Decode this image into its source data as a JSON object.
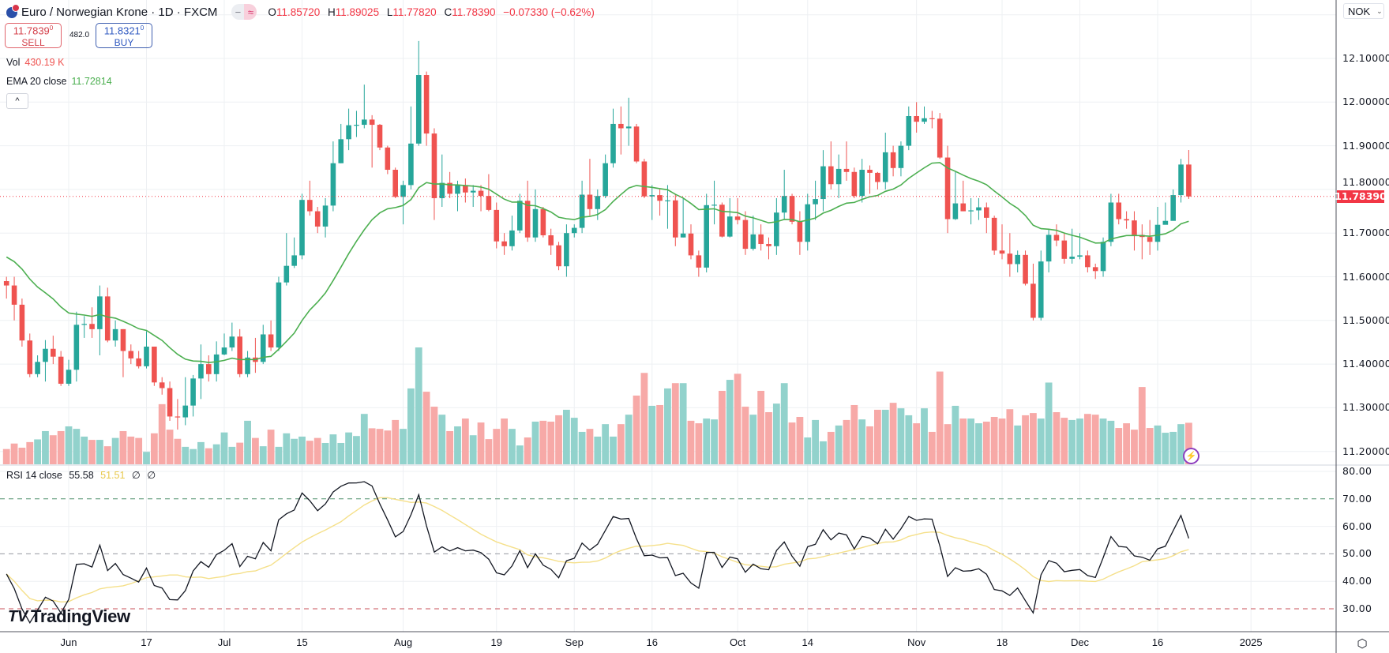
{
  "header": {
    "symbol_title": "Euro / Norwegian Krone · 1D · FXCM",
    "flag_icon": "eur-nok-flag-icon",
    "pill_left": "−",
    "pill_right": "≈",
    "ohlc": {
      "o_label": "O",
      "o": "11.85720",
      "h_label": "H",
      "h": "11.89025",
      "l_label": "L",
      "l": "11.77820",
      "c_label": "C",
      "c": "11.78390",
      "change": "−0.07330 (−0.62%)"
    }
  },
  "trade": {
    "sell_price": "11.7839",
    "sell_sup": "0",
    "sell_label": "SELL",
    "spread": "482.0",
    "buy_price": "11.8321",
    "buy_sup": "0",
    "buy_label": "BUY"
  },
  "legend": {
    "vol_label": "Vol",
    "vol_value": "430.19 K",
    "ema_label": "EMA 20 close",
    "ema_value": "11.72814",
    "collapse_icon": "^"
  },
  "currency": {
    "label": "NOK",
    "chevron": "⌄"
  },
  "rsi_header": {
    "label": "RSI 14 close",
    "rsi": "55.58",
    "ma": "51.51",
    "n1": "∅",
    "n2": "∅"
  },
  "price_axis": [
    "12.10000",
    "12.00000",
    "11.90000",
    "11.80000",
    "11.70000",
    "11.60000",
    "11.50000",
    "11.40000",
    "11.30000",
    "11.20000"
  ],
  "last_price": "11.78390",
  "rsi_axis": [
    "80.00",
    "70.00",
    "60.00",
    "50.00",
    "40.00",
    "30.00"
  ],
  "time_axis": [
    {
      "label": "Jun",
      "bar": 8
    },
    {
      "label": "17",
      "bar": 18
    },
    {
      "label": "Jul",
      "bar": 28
    },
    {
      "label": "15",
      "bar": 38
    },
    {
      "label": "Aug",
      "bar": 51
    },
    {
      "label": "19",
      "bar": 63
    },
    {
      "label": "Sep",
      "bar": 73
    },
    {
      "label": "16",
      "bar": 83
    },
    {
      "label": "Oct",
      "bar": 94
    },
    {
      "label": "14",
      "bar": 103
    },
    {
      "label": "Nov",
      "bar": 117
    },
    {
      "label": "18",
      "bar": 128
    },
    {
      "label": "Dec",
      "bar": 138
    },
    {
      "label": "16",
      "bar": 148
    },
    {
      "label": "2025",
      "bar": 160
    }
  ],
  "logo": "TradingView",
  "colors": {
    "up": "#26a69a",
    "down": "#ef5350",
    "vol_up": "#92d2cc",
    "vol_down": "#f7a9a7",
    "ema": "#4caf50",
    "rsi": "#131722",
    "rsi_ma": "#f5e08a"
  },
  "chart_data": {
    "type": "candlestick",
    "title": "Euro / Norwegian Krone · 1D · FXCM",
    "ylim": [
      11.2,
      12.1
    ],
    "rsi_ylim": [
      30,
      80
    ],
    "rsi_levels": [
      70,
      50,
      30
    ],
    "note": "open of each bar equals previous close",
    "first_open": 11.59,
    "close": [
      11.58,
      11.536,
      11.454,
      11.377,
      11.405,
      11.435,
      11.417,
      11.355,
      11.387,
      11.49,
      11.492,
      11.48,
      11.555,
      11.454,
      11.48,
      11.43,
      11.413,
      11.395,
      11.44,
      11.358,
      11.345,
      11.28,
      11.278,
      11.305,
      11.367,
      11.4,
      11.377,
      11.422,
      11.438,
      11.463,
      11.377,
      11.415,
      11.405,
      11.468,
      11.438,
      11.587,
      11.625,
      11.649,
      11.776,
      11.75,
      11.715,
      11.763,
      11.86,
      11.915,
      11.947,
      11.948,
      11.96,
      11.948,
      11.896,
      11.845,
      11.783,
      11.81,
      11.905,
      12.062,
      11.928,
      11.78,
      11.815,
      11.79,
      11.81,
      11.793,
      11.797,
      11.785,
      11.753,
      11.681,
      11.67,
      11.706,
      11.774,
      11.69,
      11.755,
      11.695,
      11.672,
      11.624,
      11.7,
      11.712,
      11.788,
      11.755,
      11.785,
      11.86,
      11.95,
      11.94,
      11.944,
      11.864,
      11.784,
      11.787,
      11.774,
      11.775,
      11.69,
      11.699,
      11.649,
      11.621,
      11.764,
      11.765,
      11.692,
      11.738,
      11.73,
      11.664,
      11.697,
      11.675,
      11.67,
      11.747,
      11.785,
      11.726,
      11.68,
      11.766,
      11.778,
      11.853,
      11.812,
      11.847,
      11.84,
      11.785,
      11.845,
      11.838,
      11.817,
      11.885,
      11.849,
      11.9,
      11.968,
      11.955,
      11.963,
      11.962,
      11.873,
      11.732,
      11.768,
      11.75,
      11.752,
      11.759,
      11.735,
      11.66,
      11.653,
      11.629,
      11.65,
      11.584,
      11.506,
      11.635,
      11.696,
      11.683,
      11.641,
      11.646,
      11.649,
      11.622,
      11.613,
      11.68,
      11.77,
      11.732,
      11.729,
      11.696,
      11.691,
      11.68,
      11.719,
      11.728,
      11.787,
      11.857,
      11.7839
    ],
    "high": [
      11.6,
      11.6,
      11.55,
      11.47,
      11.42,
      11.455,
      11.465,
      11.43,
      11.41,
      11.52,
      11.51,
      11.53,
      11.58,
      11.575,
      11.5,
      11.48,
      11.445,
      11.43,
      11.475,
      11.44,
      11.37,
      11.36,
      11.32,
      11.37,
      11.375,
      11.445,
      11.42,
      11.452,
      11.47,
      11.495,
      11.48,
      11.43,
      11.46,
      11.49,
      11.5,
      11.6,
      11.7,
      11.69,
      11.79,
      11.82,
      11.76,
      11.78,
      11.91,
      11.95,
      11.985,
      11.98,
      12.04,
      11.97,
      11.95,
      11.9,
      11.85,
      11.82,
      11.99,
      12.14,
      12.07,
      11.94,
      11.88,
      11.84,
      11.82,
      11.825,
      11.81,
      11.81,
      11.835,
      11.77,
      11.7,
      11.74,
      11.79,
      11.82,
      11.8,
      11.76,
      11.71,
      11.68,
      11.72,
      11.72,
      11.82,
      11.87,
      11.8,
      11.88,
      11.985,
      11.99,
      12.01,
      11.95,
      11.87,
      11.81,
      11.8,
      11.81,
      11.79,
      11.78,
      11.72,
      11.66,
      11.79,
      11.82,
      11.77,
      11.78,
      11.78,
      11.75,
      11.74,
      11.72,
      11.69,
      11.78,
      11.845,
      11.79,
      11.75,
      11.79,
      11.82,
      11.89,
      11.91,
      11.88,
      11.91,
      11.85,
      11.87,
      11.855,
      11.84,
      11.93,
      11.9,
      11.91,
      11.99,
      12.0,
      11.99,
      11.98,
      11.975,
      11.9,
      11.84,
      11.82,
      11.78,
      11.78,
      11.77,
      11.74,
      11.72,
      11.7,
      11.66,
      11.66,
      11.63,
      11.66,
      11.71,
      11.72,
      11.7,
      11.71,
      11.7,
      11.66,
      11.63,
      11.69,
      11.79,
      11.79,
      11.75,
      11.75,
      11.72,
      11.73,
      11.76,
      11.77,
      11.8,
      11.87,
      11.89025
    ],
    "low": [
      11.55,
      11.5,
      11.44,
      11.37,
      11.37,
      11.36,
      11.4,
      11.35,
      11.35,
      11.36,
      11.46,
      11.46,
      11.42,
      11.45,
      11.44,
      11.37,
      11.4,
      11.39,
      11.39,
      11.35,
      11.33,
      11.27,
      11.25,
      11.26,
      11.28,
      11.32,
      11.36,
      11.36,
      11.42,
      11.43,
      11.37,
      11.37,
      11.38,
      11.4,
      11.43,
      11.43,
      11.58,
      11.62,
      11.64,
      11.74,
      11.7,
      11.69,
      11.75,
      11.86,
      11.89,
      11.92,
      11.94,
      11.85,
      11.89,
      11.835,
      11.78,
      11.72,
      11.8,
      11.9,
      11.9,
      11.73,
      11.76,
      11.78,
      11.75,
      11.77,
      11.76,
      11.75,
      11.75,
      11.665,
      11.65,
      11.66,
      11.7,
      11.68,
      11.68,
      11.69,
      11.65,
      11.615,
      11.6,
      11.69,
      11.7,
      11.74,
      11.73,
      11.78,
      11.85,
      11.88,
      11.9,
      11.86,
      11.78,
      11.73,
      11.74,
      11.71,
      11.67,
      11.69,
      11.64,
      11.6,
      11.61,
      11.72,
      11.69,
      11.69,
      11.72,
      11.65,
      11.66,
      11.66,
      11.64,
      11.65,
      11.73,
      11.72,
      11.65,
      11.66,
      11.73,
      11.75,
      11.8,
      11.78,
      11.82,
      11.78,
      11.77,
      11.79,
      11.8,
      11.8,
      11.83,
      11.83,
      11.89,
      11.93,
      11.95,
      11.94,
      11.87,
      11.7,
      11.73,
      11.75,
      11.72,
      11.73,
      11.7,
      11.65,
      11.64,
      11.6,
      11.61,
      11.58,
      11.5,
      11.5,
      11.61,
      11.67,
      11.63,
      11.63,
      11.64,
      11.61,
      11.595,
      11.6,
      11.67,
      11.72,
      11.71,
      11.66,
      11.64,
      11.65,
      11.66,
      11.72,
      11.73,
      11.77,
      11.7782
    ],
    "volume_k": [
      158,
      215,
      172,
      230,
      258,
      344,
      301,
      344,
      393,
      367,
      287,
      253,
      253,
      187,
      273,
      344,
      287,
      273,
      129,
      321,
      623,
      359,
      264,
      181,
      158,
      230,
      166,
      207,
      330,
      181,
      224,
      451,
      273,
      187,
      359,
      181,
      321,
      264,
      287,
      244,
      273,
      221,
      310,
      221,
      330,
      293,
      522,
      373,
      367,
      350,
      459,
      367,
      786,
      1211,
      752,
      597,
      514,
      344,
      393,
      474,
      301,
      433,
      261,
      367,
      474,
      367,
      195,
      278,
      442,
      451,
      442,
      508,
      565,
      482,
      336,
      367,
      287,
      416,
      287,
      416,
      514,
      712,
      947,
      606,
      614,
      786,
      841,
      841,
      451,
      425,
      474,
      465,
      761,
      875,
      938,
      597,
      514,
      761,
      540,
      629,
      841,
      433,
      491,
      278,
      459,
      238,
      336,
      402,
      459,
      614,
      465,
      393,
      565,
      565,
      637,
      580,
      508,
      425,
      580,
      336,
      961,
      416,
      606,
      474,
      474,
      425,
      442,
      491,
      474,
      571,
      402,
      508,
      531,
      474,
      847,
      540,
      482,
      459,
      474,
      522,
      514,
      474,
      451,
      376,
      425,
      359,
      801,
      376,
      402,
      327,
      336,
      416,
      430.19
    ],
    "ema_period": 20,
    "ema_start": 11.652,
    "rsi_period": 14,
    "rsi_ma_period": 14
  }
}
